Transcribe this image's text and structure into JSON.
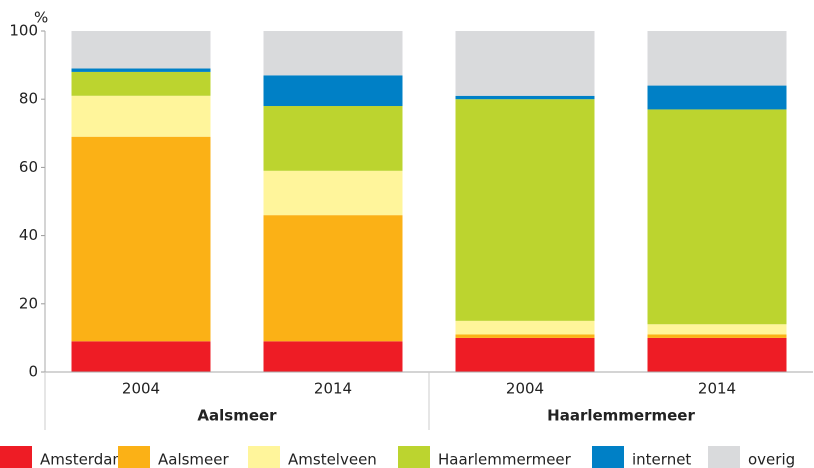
{
  "chart_data": {
    "type": "stacked_bar",
    "y_label": "%",
    "categories": [
      "2004",
      "2014",
      "2004",
      "2014"
    ],
    "group_labels": [
      "Aalsmeer",
      "Haarlemmermeer"
    ],
    "series": [
      {
        "name": "Amsterdam",
        "color": "#ee1c25",
        "values": [
          9,
          9,
          10,
          10
        ]
      },
      {
        "name": "Aalsmeer",
        "color": "#fbb116",
        "values": [
          60,
          37,
          1,
          1
        ]
      },
      {
        "name": "Amstelveen",
        "color": "#fff59b",
        "values": [
          12,
          13,
          4,
          3
        ]
      },
      {
        "name": "Haarlemmermeer",
        "color": "#bcd42f",
        "values": [
          7,
          19,
          65,
          63
        ]
      },
      {
        "name": "internet",
        "color": "#0080c6",
        "values": [
          1,
          9,
          1,
          7
        ]
      },
      {
        "name": "overig",
        "color": "#d9dadc",
        "values": [
          11,
          13,
          19,
          16
        ]
      }
    ],
    "ylim": [
      0,
      100
    ],
    "yticks": [
      0,
      20,
      40,
      60,
      80,
      100
    ],
    "grid": false,
    "legend": "bottom"
  }
}
